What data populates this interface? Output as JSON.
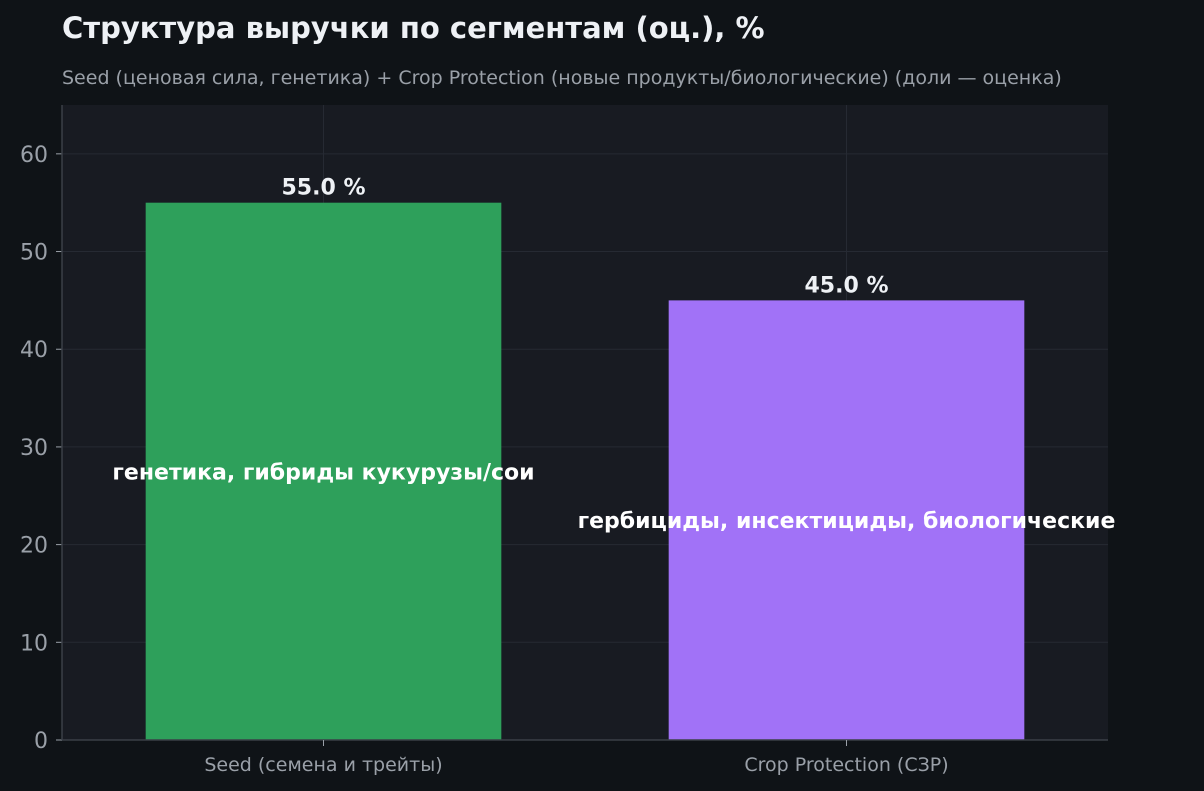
{
  "chart_data": {
    "type": "bar",
    "title": "Структура выручки по сегментам (оц.), %",
    "subtitle": "Seed (ценовая сила, генетика) + Crop Protection (новые продукты/биологические) (доли — оценка)",
    "categories": [
      "Seed (семена и трейты)",
      "Crop Protection (СЗР)"
    ],
    "values": [
      55.0,
      45.0
    ],
    "value_labels": [
      "55.0 %",
      "45.0 %"
    ],
    "inner_labels": [
      "генетика, гибриды кукурузы/сои",
      "гербициды, инсектициды, биологические"
    ],
    "colors": [
      "#2ea05b",
      "#a172f7"
    ],
    "ylim": [
      0,
      65
    ],
    "yticks": [
      0,
      10,
      20,
      30,
      40,
      50,
      60
    ],
    "grid": true,
    "legend": "none"
  },
  "theme": {
    "background": "#0f1317",
    "plot_background": "#181b22",
    "grid_color": "#262a33",
    "axis_color": "#3a3f47"
  }
}
